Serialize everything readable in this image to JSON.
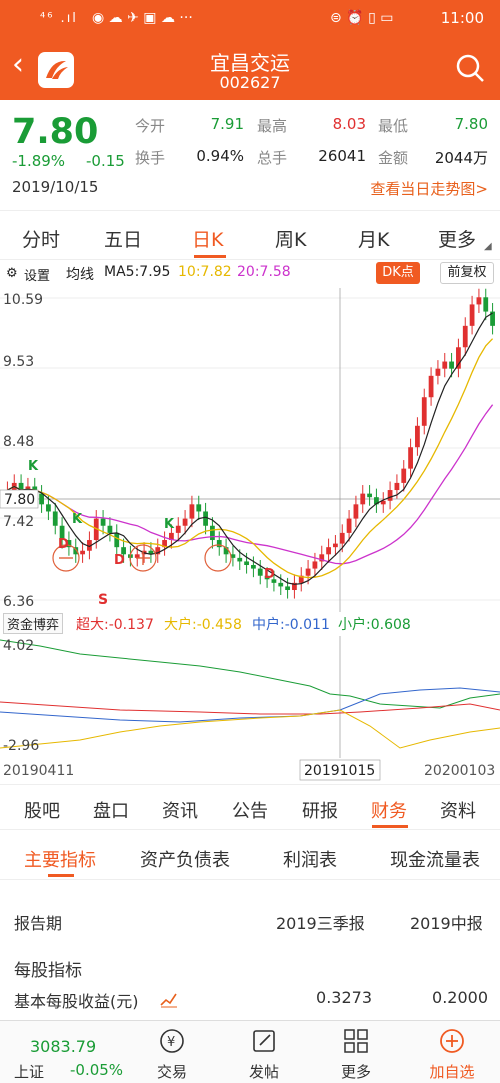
{
  "status_bar": {
    "left": "⁴⁶ .ıl",
    "time": "11:00"
  },
  "header": {
    "back": "‹",
    "title": "宜昌交运",
    "code": "002627"
  },
  "quote": {
    "price": "7.80",
    "change_pct": "-1.89%",
    "change": "-0.15",
    "date": "2019/10/15",
    "open_label": "今开",
    "open": "7.91",
    "high_label": "最高",
    "high": "8.03",
    "low_label": "最低",
    "low": "7.80",
    "turnover_label": "换手",
    "turnover": "0.94%",
    "volume_label": "总手",
    "volume": "26041",
    "amount_label": "金额",
    "amount": "2044万",
    "trend_link": "查看当日走势图>"
  },
  "period_tabs": [
    "分时",
    "五日",
    "日K",
    "周K",
    "月K",
    "更多"
  ],
  "chart_bar": {
    "settings": "设置",
    "ma_label": "均线",
    "ma5": "MA5:7.95",
    "ma10": "10:7.82",
    "ma20": "20:7.58",
    "dk": "DK点",
    "adjust": "前复权"
  },
  "colors": {
    "accent": "#f05a22",
    "up": "#e03030",
    "down": "#1a9c36",
    "ma5": "#222222",
    "ma10": "#e6b800",
    "ma20": "#cc33cc"
  },
  "chart_data": {
    "type": "candlestick",
    "y_labels": [
      "10.59",
      "9.53",
      "8.48",
      "7.42",
      "6.36"
    ],
    "current_price_label": "7.80",
    "x_labels": [
      "20190411",
      "20191015",
      "20200103"
    ],
    "marks": {
      "k": "K",
      "d": "D",
      "s": "S"
    },
    "closes": [
      7.9,
      8.0,
      7.8,
      7.95,
      7.85,
      7.7,
      7.6,
      7.4,
      7.2,
      7.1,
      7.0,
      7.05,
      7.2,
      7.5,
      7.4,
      7.3,
      7.1,
      7.0,
      6.95,
      7.0,
      7.05,
      7.0,
      7.1,
      7.2,
      7.3,
      7.4,
      7.5,
      7.7,
      7.6,
      7.4,
      7.2,
      7.1,
      7.0,
      6.95,
      6.9,
      6.85,
      6.8,
      6.7,
      6.65,
      6.6,
      6.55,
      6.5,
      6.6,
      6.7,
      6.8,
      6.9,
      7.0,
      7.1,
      7.15,
      7.3,
      7.5,
      7.7,
      7.85,
      7.8,
      7.7,
      7.75,
      7.9,
      8.0,
      8.2,
      8.5,
      8.8,
      9.2,
      9.5,
      9.6,
      9.7,
      9.6,
      9.9,
      10.2,
      10.5,
      10.6,
      10.4,
      10.2
    ]
  },
  "indicator": {
    "name": "资金博弈",
    "super_large": "超大:-0.137",
    "large": "大户:-0.458",
    "mid": "中户:-0.011",
    "small": "小户:0.608",
    "top": "4.02",
    "bottom": "-2.96"
  },
  "section_tabs": [
    "股吧",
    "盘口",
    "资讯",
    "公告",
    "研报",
    "财务",
    "资料"
  ],
  "finance_tabs": [
    "主要指标",
    "资产负债表",
    "利润表",
    "现金流量表"
  ],
  "table": {
    "period_label": "报告期",
    "col1": "2019三季报",
    "col2": "2019中报",
    "section": "每股指标",
    "row1_label": "基本每股收益(元)",
    "row1_v1": "0.3273",
    "row1_v2": "0.2000"
  },
  "bottom": {
    "index_value": "3083.79",
    "index_name": "上证",
    "index_change": "-0.05%",
    "trade": "交易",
    "post": "发帖",
    "more": "更多",
    "watch": "加自选"
  }
}
